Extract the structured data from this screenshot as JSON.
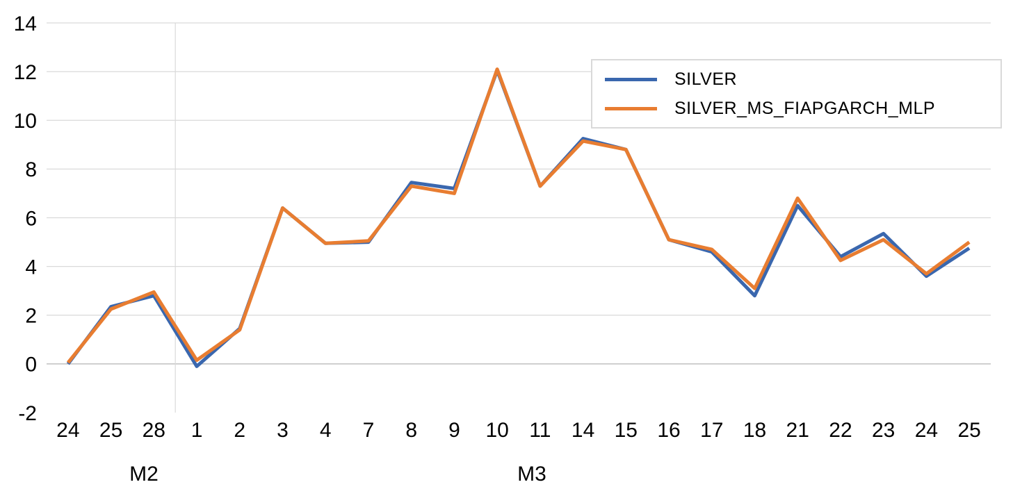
{
  "chart_data": {
    "type": "line",
    "title": "",
    "categories": [
      "24",
      "25",
      "28",
      "1",
      "2",
      "3",
      "4",
      "7",
      "8",
      "9",
      "10",
      "11",
      "14",
      "15",
      "16",
      "17",
      "18",
      "21",
      "22",
      "23",
      "24",
      "25"
    ],
    "month_groups": [
      {
        "label": "M2",
        "span": [
          0,
          2
        ]
      },
      {
        "label": "M3",
        "span": [
          3,
          21
        ]
      }
    ],
    "series": [
      {
        "name": "SILVER",
        "color": "#3A67AE",
        "values": [
          0.0,
          2.35,
          2.8,
          -0.1,
          1.45,
          6.4,
          4.95,
          5.0,
          7.45,
          7.2,
          12.05,
          7.3,
          9.25,
          8.8,
          5.1,
          4.6,
          2.8,
          6.5,
          4.4,
          5.35,
          3.6,
          4.75
        ]
      },
      {
        "name": "SILVER_MS_FIAPGARCH_MLP",
        "color": "#E87D31",
        "values": [
          0.05,
          2.25,
          2.95,
          0.15,
          1.4,
          6.4,
          4.95,
          5.05,
          7.3,
          7.0,
          12.1,
          7.3,
          9.15,
          8.8,
          5.1,
          4.7,
          3.1,
          6.8,
          4.25,
          5.1,
          3.7,
          5.0
        ]
      }
    ],
    "ylim": [
      -2,
      14
    ],
    "y_ticks": [
      -2,
      0,
      2,
      4,
      6,
      8,
      10,
      12,
      14
    ],
    "grid": true,
    "legend_position": "top-right",
    "colors": {
      "gridline": "#D9D9D9",
      "zero_axis": "#BFBFBF",
      "separator": "#D9D9D9",
      "text": "#000000",
      "legend_border": "#D9D9D9"
    }
  }
}
